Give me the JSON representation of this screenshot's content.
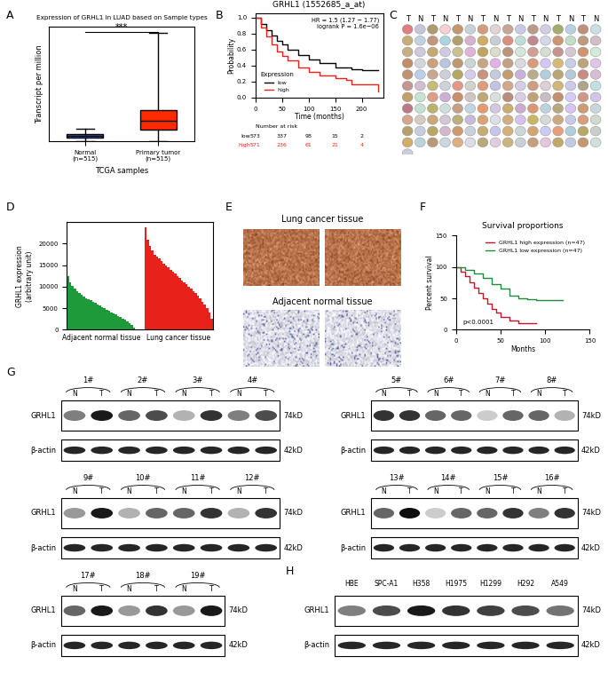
{
  "chart_data": [
    {
      "panel": "A",
      "type": "box",
      "title": "Expression of GRHL1 in LUAD based on Sample types",
      "x_label": "TCGA samples",
      "y_label": "Transcript per million",
      "categories": [
        "Normal\n(n=515)",
        "Primary tumor\n(n=515)"
      ],
      "colors": [
        "#3b5fc0",
        "#ff2a00"
      ],
      "boxes": [
        {
          "whislo": 0,
          "q1": 3,
          "median": 4.5,
          "q3": 6,
          "whishi": 11
        },
        {
          "whislo": 0,
          "q1": 10,
          "median": 18,
          "q3": 27,
          "whishi": 95
        }
      ],
      "ylim": [
        0,
        100
      ],
      "tick_labels": "x",
      "annotation": "***"
    },
    {
      "panel": "B",
      "type": "survival",
      "title": "GRHL1 (1552685_a_at)",
      "x_label": "Time (months)",
      "y_label": "Probability",
      "xlim": [
        0,
        240
      ],
      "xticks": [
        0,
        50,
        100,
        150,
        200
      ],
      "ylim": [
        0,
        1.05
      ],
      "yticks": [
        {
          "value": 0,
          "label": "0.0"
        },
        0.2,
        0.4,
        0.6,
        0.8,
        {
          "value": 1,
          "label": "1.0"
        }
      ],
      "legend": "lower left",
      "legend_title": "Expression",
      "annotation": "HR = 1.5 (1.27 − 1.77)\nlogrank P = 1.6e−06",
      "series": [
        {
          "name": "low",
          "color": "#000000",
          "x": [
            0,
            10,
            20,
            30,
            40,
            50,
            60,
            80,
            100,
            120,
            150,
            180,
            200,
            230
          ],
          "values": [
            1,
            0.92,
            0.84,
            0.77,
            0.71,
            0.66,
            0.6,
            0.53,
            0.47,
            0.43,
            0.38,
            0.35,
            0.34,
            0.34
          ]
        },
        {
          "name": "high",
          "color": "#e8221a",
          "x": [
            0,
            10,
            20,
            30,
            40,
            50,
            60,
            80,
            100,
            120,
            150,
            170,
            180,
            200,
            230
          ],
          "values": [
            1,
            0.88,
            0.76,
            0.66,
            0.58,
            0.52,
            0.46,
            0.38,
            0.32,
            0.28,
            0.24,
            0.22,
            0.17,
            0.17,
            0.08
          ]
        }
      ],
      "risk_table": {
        "title": "Number at risk",
        "times": [
          0,
          50,
          100,
          150,
          200
        ],
        "rows": [
          {
            "name": "low",
            "values": [
              573,
              337,
              98,
              15,
              2
            ]
          },
          {
            "name": "high",
            "values": [
              571,
              236,
              61,
              21,
              4
            ]
          }
        ]
      }
    },
    {
      "panel": "C",
      "type": "tissue_array",
      "headers": [
        "T",
        "N",
        "T",
        "N",
        "T",
        "N",
        "T",
        "N",
        "T",
        "N",
        "T",
        "N",
        "T",
        "N",
        "T",
        "N"
      ]
    },
    {
      "panel": "D",
      "type": "bar",
      "y_label": "GRHL1 expression\n(arbitrary unit)",
      "ylim": [
        0,
        25000
      ],
      "yticks": [
        0,
        5000,
        10000,
        15000,
        20000
      ],
      "tick_labels": "y",
      "series": [
        {
          "name": "Adjacent normal tissue",
          "color": "#1f9a3a",
          "values": [
            12500,
            11000,
            10200,
            9600,
            9000,
            8600,
            8200,
            7800,
            7400,
            7100,
            6800,
            6500,
            6200,
            5900,
            5600,
            5300,
            5000,
            4700,
            4400,
            4100,
            3800,
            3500,
            3200,
            2900,
            2600,
            2300,
            2000,
            1600,
            1100,
            400
          ]
        },
        {
          "name": "Lung cancer tissue",
          "color": "#e8221a",
          "values": [
            23800,
            21000,
            19500,
            18500,
            17500,
            17000,
            16500,
            16000,
            15400,
            15000,
            14500,
            14000,
            13500,
            13000,
            12500,
            12000,
            11500,
            11000,
            10500,
            10000,
            9500,
            9000,
            8500,
            8000,
            7200,
            6500,
            5800,
            5000,
            4000,
            2500
          ]
        }
      ]
    },
    {
      "panel": "E",
      "type": "tissue_images",
      "titles": [
        "Lung cancer tissue",
        "Adjacent normal tissue"
      ]
    },
    {
      "panel": "F",
      "type": "survival",
      "title": "Survival proportions",
      "x_label": "Months",
      "y_label": "Percent survival",
      "xlim": [
        0,
        150
      ],
      "xticks": [
        0,
        50,
        100,
        150
      ],
      "ylim": [
        0,
        150
      ],
      "yticks": [
        0,
        50,
        100,
        150
      ],
      "legend": "upper right",
      "annotation": "p<0.0001",
      "series": [
        {
          "name": "GRHL1 high expression (n=47)",
          "color": "#c0152a",
          "x": [
            0,
            5,
            10,
            15,
            20,
            25,
            30,
            35,
            40,
            45,
            50,
            60,
            70,
            80,
            90
          ],
          "values": [
            100,
            92,
            85,
            75,
            67,
            58,
            50,
            42,
            33,
            27,
            20,
            15,
            10,
            10,
            10
          ]
        },
        {
          "name": "GRHL1 low expression (n=47)",
          "color": "#1f8a3a",
          "x": [
            0,
            10,
            20,
            30,
            40,
            50,
            60,
            70,
            80,
            90,
            100,
            120
          ],
          "values": [
            100,
            96,
            90,
            82,
            72,
            65,
            55,
            50,
            48,
            47,
            47,
            47
          ]
        }
      ]
    },
    {
      "panel": "G",
      "type": "blot",
      "lanes": [
        "N",
        "T"
      ],
      "rows": [
        "GRHL1",
        "β-actin"
      ],
      "sizes": [
        "74kD",
        "42kD"
      ],
      "blots": [
        {
          "groups": [
            "1#",
            "2#",
            "3#",
            "4#"
          ],
          "intensity": [
            [
              0.5,
              0.9
            ],
            [
              0.6,
              0.7
            ],
            [
              0.3,
              0.8
            ],
            [
              0.5,
              0.7
            ]
          ]
        },
        {
          "groups": [
            "5#",
            "6#",
            "7#",
            "8#"
          ],
          "intensity": [
            [
              0.8,
              0.8
            ],
            [
              0.6,
              0.6
            ],
            [
              0.2,
              0.6
            ],
            [
              0.6,
              0.3
            ]
          ]
        },
        {
          "groups": [
            "9#",
            "10#",
            "11#",
            "12#"
          ],
          "intensity": [
            [
              0.4,
              0.9
            ],
            [
              0.3,
              0.6
            ],
            [
              0.6,
              0.8
            ],
            [
              0.3,
              0.8
            ]
          ]
        },
        {
          "groups": [
            "13#",
            "14#",
            "15#",
            "16#"
          ],
          "intensity": [
            [
              0.6,
              0.95
            ],
            [
              0.2,
              0.6
            ],
            [
              0.6,
              0.8
            ],
            [
              0.5,
              0.8
            ]
          ]
        },
        {
          "groups": [
            "17#",
            "18#",
            "19#"
          ],
          "intensity": [
            [
              0.6,
              0.9
            ],
            [
              0.4,
              0.8
            ],
            [
              0.4,
              0.9
            ]
          ]
        }
      ]
    },
    {
      "panel": "H",
      "type": "blot",
      "rows": [
        "GRHL1",
        "β-actin"
      ],
      "sizes": [
        "74kD",
        "42kD"
      ],
      "lanes": [
        "HBE",
        "SPC-A1",
        "H358",
        "H1975",
        "H1299",
        "H292",
        "A549"
      ],
      "intensity": [
        0.5,
        0.7,
        0.9,
        0.8,
        0.75,
        0.7,
        0.55
      ]
    }
  ]
}
